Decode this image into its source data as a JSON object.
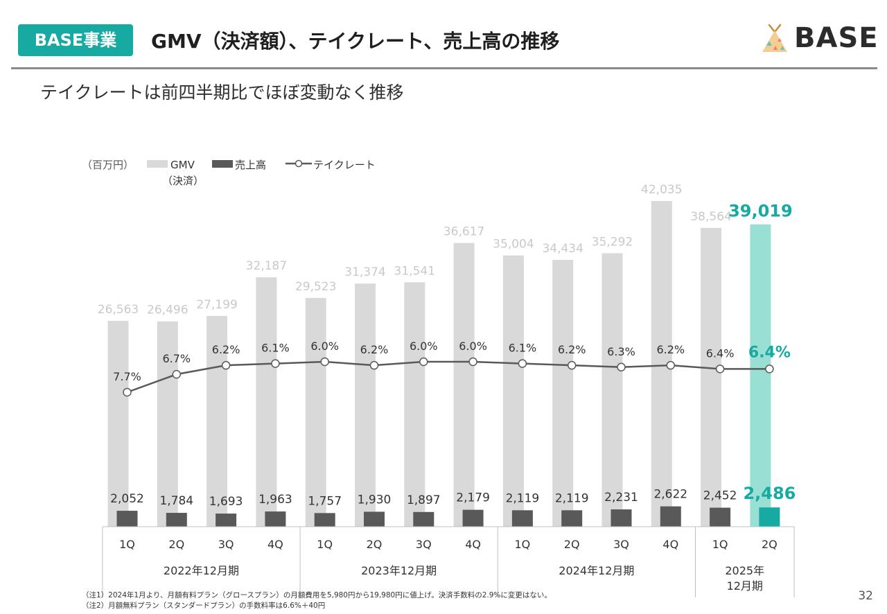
{
  "header": {
    "badge": "BASE事業",
    "title": "GMV（決済額）、テイクレート、売上高の推移",
    "subtitle": "テイクレートは前四半期比でほぼ変動なく推移",
    "logo_text": "BASE"
  },
  "colors": {
    "accent": "#16aaa2",
    "gmv_bar": "#d9d9d9",
    "gmv_bar_latest": "#9adfd3",
    "revenue_bar": "#595959",
    "revenue_bar_latest": "#16aaa2",
    "line": "#595959"
  },
  "legend": {
    "unit": "（百万円）",
    "gmv": "GMV",
    "gmv_sub": "（決済）",
    "revenue": "売上高",
    "take_rate": "テイクレート"
  },
  "chart_data": {
    "type": "bar",
    "categories": [
      "1Q",
      "2Q",
      "3Q",
      "4Q",
      "1Q",
      "2Q",
      "3Q",
      "4Q",
      "1Q",
      "2Q",
      "3Q",
      "4Q",
      "1Q",
      "2Q"
    ],
    "fiscal_years": [
      {
        "label": "2022年12月期",
        "quarters": 4
      },
      {
        "label": "2023年12月期",
        "quarters": 4
      },
      {
        "label": "2024年12月期",
        "quarters": 4
      },
      {
        "label": "2025年\n12月期",
        "quarters": 2
      }
    ],
    "series": [
      {
        "name": "GMV",
        "values": [
          26563,
          26496,
          27199,
          32187,
          29523,
          31374,
          31541,
          36617,
          35004,
          34434,
          35292,
          42035,
          38564,
          39019
        ],
        "labels": [
          "26,563",
          "26,496",
          "27,199",
          "32,187",
          "29,523",
          "31,374",
          "31,541",
          "36,617",
          "35,004",
          "34,434",
          "35,292",
          "42,035",
          "38,564",
          "39,019"
        ]
      },
      {
        "name": "売上高",
        "values": [
          2052,
          1784,
          1693,
          1963,
          1757,
          1930,
          1897,
          2179,
          2119,
          2119,
          2231,
          2622,
          2452,
          2486
        ],
        "labels": [
          "2,052",
          "1,784",
          "1,693",
          "1,963",
          "1,757",
          "1,930",
          "1,897",
          "2,179",
          "2,119",
          "2,119",
          "2,231",
          "2,622",
          "2,452",
          "2,486"
        ]
      },
      {
        "name": "テイクレート",
        "values": [
          7.7,
          6.7,
          6.2,
          6.1,
          6.0,
          6.2,
          6.0,
          6.0,
          6.1,
          6.2,
          6.3,
          6.2,
          6.4,
          6.4
        ],
        "labels": [
          "7.7%",
          "6.7%",
          "6.2%",
          "6.1%",
          "6.0%",
          "6.2%",
          "6.0%",
          "6.0%",
          "6.1%",
          "6.2%",
          "6.3%",
          "6.2%",
          "6.4%",
          "6.4%"
        ]
      }
    ],
    "ylim_amount": [
      0,
      42035
    ],
    "highlight_index": 13,
    "grid": false,
    "legend_position": "top-left"
  },
  "footnotes": [
    "（注1）2024年1月より、月額有料プラン（グロースプラン）の月額費用を5,980円から19,980円に値上げ。決済手数料の2.9%に変更はない。",
    "（注2）月額無料プラン（スタンダードプラン）の手数料率は6.6%＋40円"
  ],
  "page_number": "32"
}
